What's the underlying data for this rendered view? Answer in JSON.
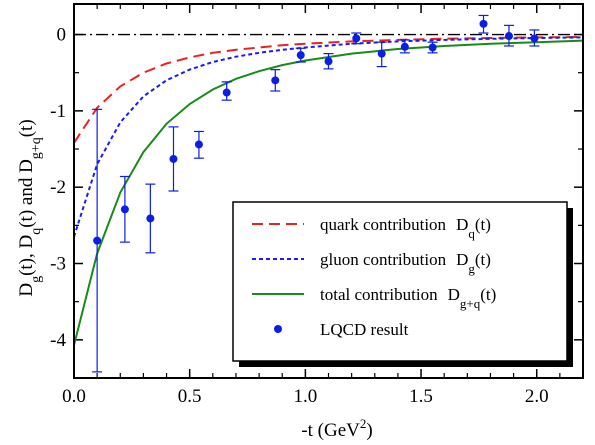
{
  "chart_data": {
    "type": "scatter",
    "xlabel": {
      "base": "-t (GeV",
      "sup": "2",
      "tail": ")"
    },
    "ylabel": {
      "parts": [
        {
          "t": "D"
        },
        {
          "t": "g",
          "sub": true
        },
        {
          "t": "(t), D"
        },
        {
          "t": "q",
          "sub": true
        },
        {
          "t": "(t) and D"
        },
        {
          "t": "g+q",
          "sub": true
        },
        {
          "t": "(t)"
        }
      ]
    },
    "xlim": [
      0,
      2.2
    ],
    "ylim": [
      -4.5,
      0.4
    ],
    "x_ticks": [
      0.0,
      0.5,
      1.0,
      1.5,
      2.0
    ],
    "x_tick_labels": [
      "0.0",
      "0.5",
      "1.0",
      "1.5",
      "2.0"
    ],
    "y_ticks": [
      -4,
      -3,
      -2,
      -1,
      0
    ],
    "y_tick_labels": [
      "-4",
      "-3",
      "-2",
      "-1",
      "0"
    ],
    "reference_line_y": 0,
    "grid": false,
    "legend_position": "bottom-right",
    "colors": {
      "quark": "#e8231f",
      "gluon": "#1a1aff",
      "total": "#1a8a1a",
      "lqcd": "#0b1ee6"
    },
    "series": [
      {
        "name": "quark contribution",
        "legend_symbol": {
          "base": "D",
          "sub": "q",
          "tail": "(t)"
        },
        "kind": "line",
        "style": "dashed",
        "color_key": "quark",
        "x": [
          0.0,
          0.1,
          0.2,
          0.3,
          0.4,
          0.5,
          0.6,
          0.7,
          0.8,
          0.9,
          1.0,
          1.2,
          1.4,
          1.6,
          1.8,
          2.0,
          2.2
        ],
        "y": [
          -1.42,
          -0.96,
          -0.68,
          -0.5,
          -0.38,
          -0.3,
          -0.24,
          -0.2,
          -0.17,
          -0.14,
          -0.12,
          -0.09,
          -0.07,
          -0.055,
          -0.045,
          -0.038,
          -0.032
        ]
      },
      {
        "name": "gluon contribution",
        "legend_symbol": {
          "base": "D",
          "sub": "g",
          "tail": "(t)"
        },
        "kind": "line",
        "style": "dotted",
        "color_key": "gluon",
        "x": [
          0.0,
          0.1,
          0.2,
          0.3,
          0.4,
          0.5,
          0.6,
          0.7,
          0.8,
          0.9,
          1.0,
          1.2,
          1.4,
          1.6,
          1.8,
          2.0,
          2.2
        ],
        "y": [
          -2.65,
          -1.7,
          -1.15,
          -0.81,
          -0.6,
          -0.46,
          -0.36,
          -0.29,
          -0.24,
          -0.2,
          -0.17,
          -0.12,
          -0.09,
          -0.07,
          -0.056,
          -0.046,
          -0.038
        ]
      },
      {
        "name": "total contribution",
        "legend_symbol": {
          "base": "D",
          "sub": "g+q",
          "tail": "(t)"
        },
        "kind": "line",
        "style": "solid",
        "color_key": "total",
        "x": [
          0.0,
          0.1,
          0.2,
          0.3,
          0.4,
          0.5,
          0.6,
          0.7,
          0.8,
          0.9,
          1.0,
          1.2,
          1.4,
          1.6,
          1.8,
          2.0,
          2.2
        ],
        "y": [
          -4.07,
          -2.87,
          -2.07,
          -1.54,
          -1.17,
          -0.91,
          -0.72,
          -0.58,
          -0.48,
          -0.4,
          -0.34,
          -0.25,
          -0.19,
          -0.15,
          -0.12,
          -0.1,
          -0.08
        ]
      },
      {
        "name": "LQCD result",
        "kind": "points",
        "color_key": "lqcd",
        "points": [
          {
            "x": 0.1,
            "y": -2.7,
            "ylow": -4.42,
            "yhigh": -0.98
          },
          {
            "x": 0.22,
            "y": -2.29,
            "ylow": -2.72,
            "yhigh": -1.86
          },
          {
            "x": 0.33,
            "y": -2.41,
            "ylow": -2.86,
            "yhigh": -1.96
          },
          {
            "x": 0.43,
            "y": -1.63,
            "ylow": -2.05,
            "yhigh": -1.21
          },
          {
            "x": 0.54,
            "y": -1.44,
            "ylow": -1.62,
            "yhigh": -1.27
          },
          {
            "x": 0.66,
            "y": -0.76,
            "ylow": -0.86,
            "yhigh": -0.62
          },
          {
            "x": 0.87,
            "y": -0.6,
            "ylow": -0.74,
            "yhigh": -0.46
          },
          {
            "x": 0.98,
            "y": -0.27,
            "ylow": -0.36,
            "yhigh": -0.18
          },
          {
            "x": 1.1,
            "y": -0.35,
            "ylow": -0.45,
            "yhigh": -0.25
          },
          {
            "x": 1.22,
            "y": -0.05,
            "ylow": -0.12,
            "yhigh": 0.02
          },
          {
            "x": 1.33,
            "y": -0.25,
            "ylow": -0.42,
            "yhigh": -0.1
          },
          {
            "x": 1.43,
            "y": -0.16,
            "ylow": -0.24,
            "yhigh": -0.07
          },
          {
            "x": 1.55,
            "y": -0.17,
            "ylow": -0.24,
            "yhigh": -0.1
          },
          {
            "x": 1.77,
            "y": 0.14,
            "ylow": 0.02,
            "yhigh": 0.25
          },
          {
            "x": 1.88,
            "y": -0.02,
            "ylow": -0.15,
            "yhigh": 0.12
          },
          {
            "x": 1.99,
            "y": -0.05,
            "ylow": -0.15,
            "yhigh": 0.06
          }
        ]
      }
    ]
  }
}
